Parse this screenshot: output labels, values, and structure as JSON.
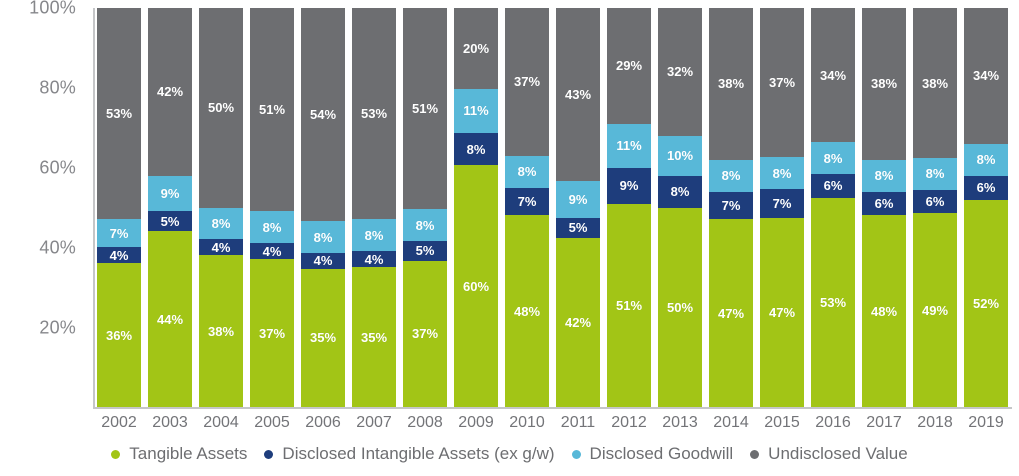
{
  "chart_data": {
    "type": "bar",
    "stacked": true,
    "orientation": "vertical",
    "title": "",
    "xlabel": "",
    "ylabel": "",
    "ylim": [
      0,
      100
    ],
    "grid": false,
    "legend_position": "bottom",
    "value_label_suffix": "%",
    "y_ticks": [
      {
        "label": "100%",
        "value": 100
      },
      {
        "label": "80%",
        "value": 80
      },
      {
        "label": "60%",
        "value": 60
      },
      {
        "label": "40%",
        "value": 40
      },
      {
        "label": "20%",
        "value": 20
      }
    ],
    "categories": [
      "2002",
      "2003",
      "2004",
      "2005",
      "2006",
      "2007",
      "2008",
      "2009",
      "2010",
      "2011",
      "2012",
      "2013",
      "2014",
      "2015",
      "2016",
      "2017",
      "2018",
      "2019"
    ],
    "series": [
      {
        "name": "Tangible Assets",
        "color": "#a2c516",
        "values": [
          36,
          44,
          38,
          37,
          35,
          35,
          37,
          60,
          48,
          42,
          51,
          50,
          47,
          47,
          53,
          48,
          49,
          52
        ]
      },
      {
        "name": "Disclosed Intangible Assets (ex g/w)",
        "color": "#1e3d7c",
        "values": [
          4,
          5,
          4,
          4,
          4,
          4,
          5,
          8,
          7,
          5,
          9,
          8,
          7,
          7,
          6,
          6,
          6,
          6
        ]
      },
      {
        "name": "Disclosed Goodwill",
        "color": "#58b8d8",
        "values": [
          7,
          9,
          8,
          8,
          8,
          8,
          8,
          11,
          8,
          9,
          11,
          10,
          8,
          8,
          8,
          8,
          8,
          8
        ]
      },
      {
        "name": "Undisclosed Value",
        "color": "#6d6e71",
        "values": [
          53,
          42,
          50,
          51,
          54,
          53,
          51,
          20,
          37,
          43,
          29,
          32,
          38,
          37,
          34,
          38,
          38,
          34
        ]
      }
    ],
    "axis_colors": {
      "axis_line": "#c5c6c8",
      "y_tick_text": "#86878b",
      "x_tick_text": "#737478",
      "legend_text": "#6d6e71"
    }
  }
}
